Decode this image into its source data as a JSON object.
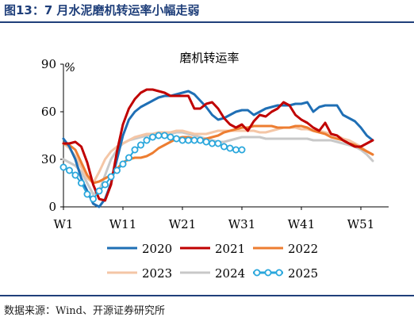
{
  "figure_title": "图13：7 月水泥磨机转运率小幅走弱",
  "source": "数据来源：Wind、开源证券研究所",
  "colors": {
    "header": "#1f3f7a",
    "2020": "#1f6fb5",
    "2021": "#c00000",
    "2022": "#ed7d31",
    "2023": "#f4c6a6",
    "2024": "#c8c8c8",
    "2025": "#2aa7dc"
  },
  "chart_data": {
    "type": "line",
    "title": "磨机转运率",
    "ylabel": "%",
    "xlabel": "",
    "ylim": [
      0,
      90
    ],
    "xlim": [
      1,
      53
    ],
    "yticks": [
      0,
      30,
      60,
      90
    ],
    "xticks": [
      1,
      11,
      21,
      31,
      41,
      51
    ],
    "xtick_labels": [
      "W1",
      "W11",
      "W21",
      "W31",
      "W41",
      "W51"
    ],
    "grid": false,
    "legend_position": "bottom",
    "series": [
      {
        "name": "2020",
        "x": [
          1,
          2,
          3,
          4,
          5,
          6,
          7,
          8,
          9,
          10,
          11,
          12,
          13,
          14,
          15,
          16,
          17,
          18,
          19,
          20,
          21,
          22,
          23,
          24,
          25,
          26,
          27,
          28,
          29,
          30,
          31,
          32,
          33,
          34,
          35,
          36,
          37,
          38,
          39,
          40,
          41,
          42,
          43,
          44,
          45,
          46,
          47,
          48,
          49,
          50,
          51,
          52,
          53
        ],
        "y": [
          43,
          38,
          30,
          18,
          10,
          2,
          0,
          5,
          15,
          30,
          45,
          55,
          60,
          63,
          65,
          67,
          69,
          70,
          70,
          71,
          72,
          73,
          71,
          67,
          63,
          58,
          55,
          56,
          58,
          60,
          61,
          61,
          58,
          60,
          62,
          63,
          64,
          64,
          64,
          65,
          65,
          66,
          60,
          63,
          64,
          64,
          64,
          58,
          56,
          54,
          50,
          45,
          42
        ]
      },
      {
        "name": "2021",
        "x": [
          1,
          2,
          3,
          4,
          5,
          6,
          7,
          8,
          9,
          10,
          11,
          12,
          13,
          14,
          15,
          16,
          17,
          18,
          19,
          20,
          21,
          22,
          23,
          24,
          25,
          26,
          27,
          28,
          29,
          30,
          31,
          32,
          33,
          34,
          35,
          36,
          37,
          38,
          39,
          40,
          41,
          42,
          43,
          44,
          45,
          46,
          47,
          48,
          49,
          50,
          51,
          52,
          53
        ],
        "y": [
          40,
          40,
          41,
          38,
          28,
          14,
          5,
          4,
          14,
          35,
          52,
          62,
          68,
          72,
          74,
          74,
          73,
          72,
          70,
          70,
          70,
          70,
          62,
          62,
          65,
          66,
          62,
          56,
          52,
          50,
          52,
          48,
          54,
          58,
          57,
          60,
          62,
          66,
          64,
          58,
          55,
          53,
          50,
          48,
          53,
          46,
          45,
          42,
          40,
          38,
          38,
          40,
          42
        ]
      },
      {
        "name": "2022",
        "x": [
          1,
          2,
          3,
          4,
          5,
          6,
          7,
          8,
          9,
          10,
          11,
          12,
          13,
          14,
          15,
          16,
          17,
          18,
          19,
          20,
          21,
          22,
          23,
          24,
          25,
          26,
          27,
          28,
          29,
          30,
          31,
          32,
          33,
          34,
          35,
          36,
          37,
          38,
          39,
          40,
          41,
          42,
          43,
          44,
          45,
          46,
          47,
          48,
          49,
          50,
          51,
          52,
          53
        ],
        "y": [
          40,
          39,
          36,
          28,
          20,
          15,
          16,
          18,
          20,
          24,
          28,
          30,
          31,
          31,
          32,
          34,
          37,
          39,
          41,
          43,
          44,
          44,
          43,
          42,
          43,
          44,
          45,
          47,
          48,
          49,
          50,
          50,
          51,
          51,
          51,
          51,
          50,
          50,
          50,
          51,
          51,
          50,
          48,
          47,
          46,
          44,
          43,
          42,
          40,
          39,
          37,
          35,
          33
        ]
      },
      {
        "name": "2023",
        "x": [
          1,
          2,
          3,
          4,
          5,
          6,
          7,
          8,
          9,
          10,
          11,
          12,
          13,
          14,
          15,
          16,
          17,
          18,
          19,
          20,
          21,
          22,
          23,
          24,
          25,
          26,
          27,
          28,
          29,
          30,
          31,
          32,
          33,
          34,
          35,
          36,
          37,
          38,
          39,
          40,
          41,
          42,
          43,
          44,
          45,
          46,
          47,
          48,
          49,
          50,
          51,
          52,
          53
        ],
        "y": [
          40,
          37,
          32,
          25,
          18,
          15,
          22,
          30,
          35,
          38,
          40,
          42,
          44,
          45,
          46,
          46,
          47,
          47,
          47,
          48,
          48,
          47,
          46,
          46,
          46,
          47,
          48,
          48,
          48,
          48,
          48,
          48,
          48,
          47,
          47,
          48,
          49,
          50,
          50,
          50,
          49,
          49,
          48,
          48,
          47,
          46,
          45,
          43,
          42,
          40,
          38,
          35,
          33
        ]
      },
      {
        "name": "2024",
        "x": [
          1,
          2,
          3,
          4,
          5,
          6,
          7,
          8,
          9,
          10,
          11,
          12,
          13,
          14,
          15,
          16,
          17,
          18,
          19,
          20,
          21,
          22,
          23,
          24,
          25,
          26,
          27,
          28,
          29,
          30,
          31,
          32,
          33,
          34,
          35,
          36,
          37,
          38,
          39,
          40,
          41,
          42,
          43,
          44,
          45,
          46,
          47,
          48,
          49,
          50,
          51,
          52,
          53
        ],
        "y": [
          30,
          28,
          26,
          22,
          15,
          8,
          10,
          20,
          30,
          36,
          40,
          42,
          43,
          44,
          45,
          45,
          46,
          46,
          46,
          47,
          47,
          46,
          45,
          44,
          43,
          42,
          41,
          41,
          42,
          43,
          44,
          44,
          44,
          44,
          43,
          43,
          43,
          43,
          43,
          43,
          43,
          43,
          42,
          42,
          42,
          42,
          41,
          40,
          39,
          38,
          36,
          33,
          29
        ]
      },
      {
        "name": "2025",
        "x": [
          1,
          2,
          3,
          4,
          5,
          6,
          7,
          8,
          9,
          10,
          11,
          12,
          13,
          14,
          15,
          16,
          17,
          18,
          19,
          20,
          21,
          22,
          23,
          24,
          25,
          26,
          27,
          28,
          29,
          30,
          31
        ],
        "y": [
          25,
          23,
          20,
          15,
          8,
          5,
          10,
          14,
          19,
          23,
          27,
          31,
          36,
          39,
          42,
          44,
          45,
          45,
          44,
          43,
          42,
          42,
          42,
          42,
          41,
          40,
          40,
          38,
          37,
          36,
          36
        ]
      }
    ]
  }
}
